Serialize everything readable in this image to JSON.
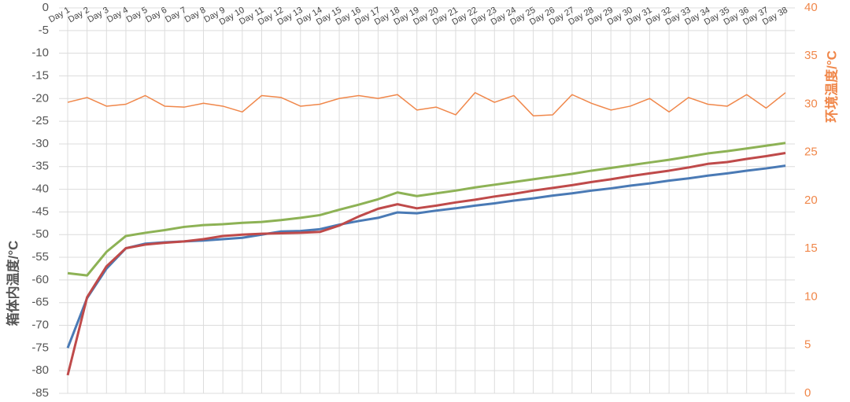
{
  "chart_data": {
    "type": "line",
    "ylabel": "箱体内温度/°C",
    "y2label": "环境温度/°C",
    "categories": [
      "Day 1",
      "Day 2",
      "Day 3",
      "Day 4",
      "Day 5",
      "Day 6",
      "Day 7",
      "Day 8",
      "Day 9",
      "Day 10",
      "Day 11",
      "Day 12",
      "Day 13",
      "Day 14",
      "Day 15",
      "Day 16",
      "Day 17",
      "Day 18",
      "Day 19",
      "Day 20",
      "Day 21",
      "Day 22",
      "Day 23",
      "Day 24",
      "Day 25",
      "Day 26",
      "Day 27",
      "Day 28",
      "Day 29",
      "Day 30",
      "Day 31",
      "Day 32",
      "Day 33",
      "Day 34",
      "Day 35",
      "Day 36",
      "Day 37",
      "Day 38"
    ],
    "series": [
      {
        "color": "#4a7ab5",
        "values": [
          -75,
          -64,
          -57.5,
          -53,
          -52,
          -51.7,
          -51.5,
          -51.3,
          -51,
          -50.7,
          -50,
          -49.3,
          -49.2,
          -48.8,
          -47.8,
          -47,
          -46.3,
          -45.1,
          -45.3,
          -44.7,
          -44.2,
          -43.6,
          -43.1,
          -42.5,
          -42.0,
          -41.4,
          -40.9,
          -40.3,
          -39.8,
          -39.2,
          -38.7,
          -38.1,
          -37.6,
          -37.0,
          -36.5,
          -35.9,
          -35.4,
          -34.8
        ]
      },
      {
        "color": "#bf4a4a",
        "values": [
          -81,
          -63.8,
          -57,
          -53,
          -52.2,
          -51.8,
          -51.5,
          -51,
          -50.3,
          -50,
          -49.8,
          -49.7,
          -49.6,
          -49.4,
          -48,
          -46,
          -44.3,
          -43.3,
          -44.2,
          -43.6,
          -42.9,
          -42.3,
          -41.6,
          -41.0,
          -40.3,
          -39.7,
          -39.1,
          -38.4,
          -37.8,
          -37.1,
          -36.5,
          -35.9,
          -35.2,
          -34.4,
          -34.0,
          -33.3,
          -32.7,
          -32.0
        ]
      },
      {
        "color": "#8db255",
        "values": [
          -58.5,
          -59,
          -53.8,
          -50.3,
          -49.6,
          -49,
          -48.3,
          -47.9,
          -47.7,
          -47.4,
          -47.2,
          -46.8,
          -46.3,
          -45.7,
          -44.5,
          -43.4,
          -42.2,
          -40.7,
          -41.5,
          -40.9,
          -40.3,
          -39.6,
          -39.0,
          -38.4,
          -37.8,
          -37.2,
          -36.6,
          -35.9,
          -35.3,
          -34.7,
          -34.1,
          -33.5,
          -32.8,
          -32.1,
          -31.6,
          -31.0,
          -30.4,
          -29.8
        ]
      },
      {
        "color": "#f0874a",
        "axis": "y2",
        "values": [
          30.2,
          30.7,
          29.8,
          30.0,
          30.9,
          29.8,
          29.7,
          30.1,
          29.8,
          29.2,
          30.9,
          30.7,
          29.8,
          30.0,
          30.6,
          30.9,
          30.6,
          31.0,
          29.4,
          29.7,
          28.9,
          31.2,
          30.2,
          30.9,
          28.8,
          28.9,
          31.0,
          30.1,
          29.4,
          29.8,
          30.6,
          29.2,
          30.7,
          30.0,
          29.8,
          31.0,
          29.6,
          31.2
        ]
      }
    ],
    "ylim": [
      -85,
      0
    ],
    "yticks": [
      0,
      -5,
      -10,
      -15,
      -20,
      -25,
      -30,
      -35,
      -40,
      -45,
      -50,
      -55,
      -60,
      -65,
      -70,
      -75,
      -80,
      -85
    ],
    "y2lim": [
      0,
      40
    ],
    "y2ticks": [
      0,
      5,
      10,
      15,
      20,
      25,
      30,
      35,
      40
    ],
    "grid": true
  }
}
